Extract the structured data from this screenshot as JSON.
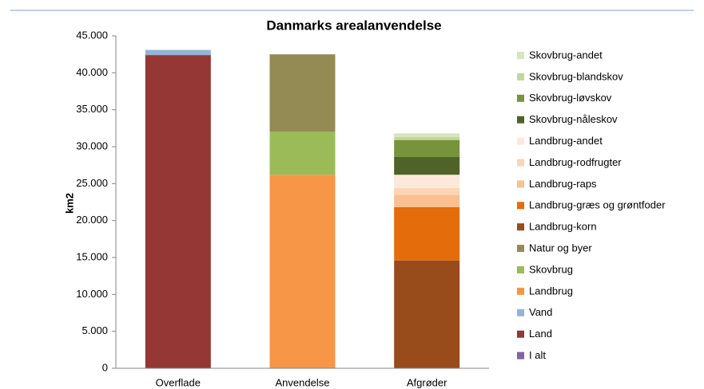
{
  "chart_data": {
    "type": "bar",
    "stacked": true,
    "title": "Danmarks arealanvendelse",
    "y_label": "km2",
    "categories": [
      "Overflade",
      "Anvendelse",
      "Afgrøder"
    ],
    "series": [
      {
        "name": "I alt",
        "color": "#8064a2",
        "values": [
          null,
          null,
          null
        ]
      },
      {
        "name": "Land",
        "color": "#953735",
        "values": [
          42400,
          null,
          null
        ]
      },
      {
        "name": "Vand",
        "color": "#95b3d7",
        "values": [
          700,
          null,
          null
        ]
      },
      {
        "name": "Landbrug",
        "color": "#f79646",
        "values": [
          null,
          26200,
          null
        ]
      },
      {
        "name": "Skovbrug",
        "color": "#9bbb59",
        "values": [
          null,
          5850,
          null
        ]
      },
      {
        "name": "Natur og byer",
        "color": "#948a54",
        "values": [
          null,
          10450,
          null
        ]
      },
      {
        "name": "Landbrug-korn",
        "color": "#984b1b",
        "values": [
          null,
          null,
          14600
        ]
      },
      {
        "name": "Landbrug-græs og grøntfoder",
        "color": "#e46c0a",
        "values": [
          null,
          null,
          7200
        ]
      },
      {
        "name": "Landbrug-raps",
        "color": "#fac090",
        "values": [
          null,
          null,
          1700
        ]
      },
      {
        "name": "Landbrug-rodfrugter",
        "color": "#fcd5b5",
        "values": [
          null,
          null,
          900
        ]
      },
      {
        "name": "Landbrug-andet",
        "color": "#fde9d9",
        "values": [
          null,
          null,
          1800
        ]
      },
      {
        "name": "Skovbrug-nåleskov",
        "color": "#4f6228",
        "values": [
          null,
          null,
          2400
        ]
      },
      {
        "name": "Skovbrug-løvskov",
        "color": "#77933c",
        "values": [
          null,
          null,
          2300
        ]
      },
      {
        "name": "Skovbrug-blandskov",
        "color": "#c3d69b",
        "values": [
          null,
          null,
          400
        ]
      },
      {
        "name": "Skovbrug-andet",
        "color": "#d7e4bd",
        "values": [
          null,
          null,
          500
        ]
      }
    ],
    "ylim": [
      0,
      45000
    ],
    "yticks": [
      0,
      {
        "value": 5000,
        "label": "5.000"
      },
      {
        "value": 10000,
        "label": "10.000"
      },
      {
        "value": 15000,
        "label": "15.000"
      },
      {
        "value": 20000,
        "label": "20.000"
      },
      {
        "value": 25000,
        "label": "25.000"
      },
      {
        "value": 30000,
        "label": "30.000"
      },
      {
        "value": 35000,
        "label": "35.000"
      },
      {
        "value": 40000,
        "label": "40.000"
      },
      {
        "value": 45000,
        "label": "45.000"
      }
    ],
    "grid": false,
    "legend": "right"
  }
}
